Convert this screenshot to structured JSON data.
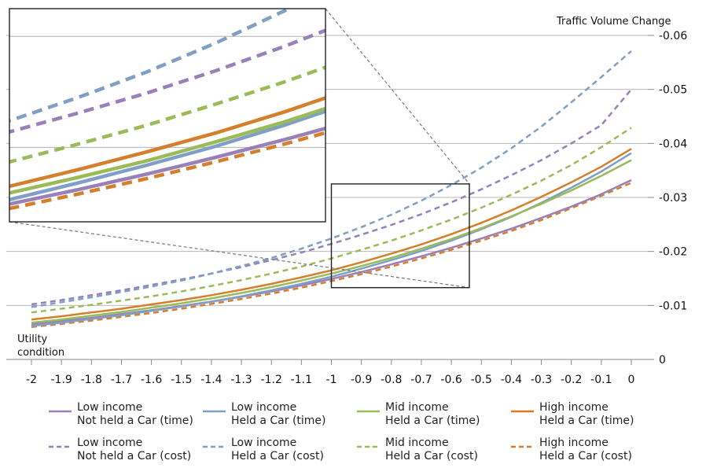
{
  "chart_data": {
    "type": "line",
    "title": "",
    "xlabel": "Utility condition",
    "ylabel": "Traffic Volume Change",
    "xlabel_lines": [
      "Utility",
      "condition"
    ],
    "x_ticks": [
      "-2",
      "-1.9",
      "-1.8",
      "-1.7",
      "-1.6",
      "-1.5",
      "-1.4",
      "-1.3",
      "-1.2",
      "-1.1",
      "-1",
      "-0.9",
      "-0.8",
      "-0.7",
      "-0.6",
      "-0.5",
      "-0.4",
      "-0.3",
      "-0.2",
      "-0.1",
      "0"
    ],
    "y_ticks": [
      "0",
      "-0.01",
      "-0.02",
      "-0.03",
      "-0.04",
      "-0.05",
      "-0.06"
    ],
    "xlim": [
      -2,
      0
    ],
    "ylim": [
      0,
      -0.06
    ],
    "x": [
      -2,
      -1.9,
      -1.8,
      -1.7,
      -1.6,
      -1.5,
      -1.4,
      -1.3,
      -1.2,
      -1.1,
      -1,
      -0.9,
      -0.8,
      -0.7,
      -0.6,
      -0.5,
      -0.4,
      -0.3,
      -0.2,
      -0.1,
      0
    ],
    "series": [
      {
        "name": "Low income Not held a Car (time)",
        "line1": "Low income",
        "line2": "Not held a Car (time)",
        "color": "#9980b8",
        "dash": false,
        "values": [
          -0.0065,
          -0.0071,
          -0.0077,
          -0.0084,
          -0.0091,
          -0.0099,
          -0.0107,
          -0.0116,
          -0.0126,
          -0.0137,
          -0.0149,
          -0.0162,
          -0.0176,
          -0.0191,
          -0.0207,
          -0.0224,
          -0.0242,
          -0.0262,
          -0.0283,
          -0.0306,
          -0.0332
        ]
      },
      {
        "name": "Low income Held a Car (time)",
        "line1": "Low  income",
        "line2": "Held a Car (time)",
        "color": "#7f9fc4",
        "dash": false,
        "values": [
          -0.0062,
          -0.0068,
          -0.0075,
          -0.0082,
          -0.009,
          -0.0098,
          -0.0107,
          -0.0117,
          -0.0128,
          -0.014,
          -0.0153,
          -0.0168,
          -0.0184,
          -0.0201,
          -0.022,
          -0.0241,
          -0.0264,
          -0.029,
          -0.0318,
          -0.0348,
          -0.0382
        ]
      },
      {
        "name": "Mid income Held a Car (time)",
        "line1": "Mid  income",
        "line2": "Held a Car (time)",
        "color": "#9bbb59",
        "dash": false,
        "values": [
          -0.0068,
          -0.0074,
          -0.0081,
          -0.0088,
          -0.0096,
          -0.0104,
          -0.0113,
          -0.0123,
          -0.0134,
          -0.0146,
          -0.0159,
          -0.0173,
          -0.0188,
          -0.0205,
          -0.0223,
          -0.0243,
          -0.0265,
          -0.0288,
          -0.0313,
          -0.034,
          -0.0369
        ]
      },
      {
        "name": "High income Held a Car (time)",
        "line1": "High  income",
        "line2": "Held a Car (time)",
        "color": "#d57f2c",
        "dash": false,
        "values": [
          -0.0074,
          -0.008,
          -0.0087,
          -0.0094,
          -0.0102,
          -0.011,
          -0.0119,
          -0.0129,
          -0.014,
          -0.0152,
          -0.0165,
          -0.018,
          -0.0196,
          -0.0213,
          -0.0232,
          -0.0253,
          -0.0276,
          -0.0301,
          -0.0328,
          -0.0357,
          -0.039
        ]
      },
      {
        "name": "Low income Not held a Car (cost)",
        "line1": "Low income",
        "line2": "Not held a Car (cost)",
        "color": "#9980b8",
        "dash": true,
        "values": [
          -0.0102,
          -0.011,
          -0.0119,
          -0.0128,
          -0.0138,
          -0.0148,
          -0.0159,
          -0.0171,
          -0.0184,
          -0.0198,
          -0.0214,
          -0.0231,
          -0.0249,
          -0.0269,
          -0.0291,
          -0.0315,
          -0.0341,
          -0.0369,
          -0.04,
          -0.0434,
          -0.05
        ]
      },
      {
        "name": "Low income Held a Car (cost)",
        "line1": "Low  income",
        "line2": "Held a Car (cost)",
        "color": "#7f9fc4",
        "dash": true,
        "values": [
          -0.0097,
          -0.0106,
          -0.0115,
          -0.0125,
          -0.0135,
          -0.0146,
          -0.0159,
          -0.0173,
          -0.0188,
          -0.0205,
          -0.0224,
          -0.0245,
          -0.0268,
          -0.0294,
          -0.0323,
          -0.0355,
          -0.0391,
          -0.0431,
          -0.0476,
          -0.0523,
          -0.0571
        ]
      },
      {
        "name": "Mid income Held a Car (cost)",
        "line1": "Mid  income",
        "line2": "Held a Car (cost)",
        "color": "#9bbb59",
        "dash": true,
        "values": [
          -0.0087,
          -0.0094,
          -0.0101,
          -0.0109,
          -0.0117,
          -0.0126,
          -0.0136,
          -0.0147,
          -0.0159,
          -0.0172,
          -0.0187,
          -0.0203,
          -0.022,
          -0.0239,
          -0.0259,
          -0.0281,
          -0.0305,
          -0.0331,
          -0.036,
          -0.0393,
          -0.0429
        ]
      },
      {
        "name": "High income Held a Car (cost)",
        "line1": "High  income",
        "line2": "Held a Car (cost)",
        "color": "#d57f2c",
        "dash": true,
        "values": [
          -0.006,
          -0.0066,
          -0.0072,
          -0.0079,
          -0.0086,
          -0.0094,
          -0.0103,
          -0.0112,
          -0.0122,
          -0.0133,
          -0.0145,
          -0.0158,
          -0.0172,
          -0.0187,
          -0.0203,
          -0.022,
          -0.0238,
          -0.0258,
          -0.028,
          -0.0303,
          -0.0327
        ]
      }
    ],
    "zoom_box": {
      "x_range": [
        -1.0,
        -0.54
      ],
      "y_range": [
        -0.0133,
        -0.0325
      ]
    },
    "legend": "bottom",
    "grid": true
  }
}
